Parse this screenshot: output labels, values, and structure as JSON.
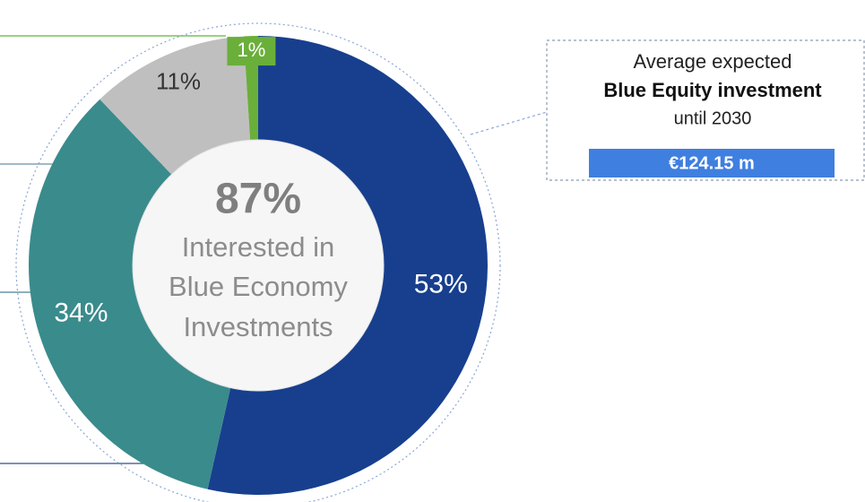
{
  "chart_data": {
    "type": "pie",
    "hole": true,
    "values": [
      53,
      34,
      11,
      1
    ],
    "value_labels": [
      "53%",
      "34%",
      "11%",
      "1%"
    ],
    "colors": [
      "#173f8e",
      "#3a8b8c",
      "#bfbfbf",
      "#6aaf3a"
    ],
    "label_colors": [
      "#ffffff",
      "#ffffff",
      "#333333",
      "#ffffff"
    ],
    "center_label": "87%",
    "center_caption": [
      "Interested in",
      "Blue Economy",
      "Investments"
    ],
    "callout": {
      "lines": [
        "Average expected",
        "Blue Equity investment",
        "until 2030"
      ],
      "value_label": "€124.15 m"
    }
  }
}
